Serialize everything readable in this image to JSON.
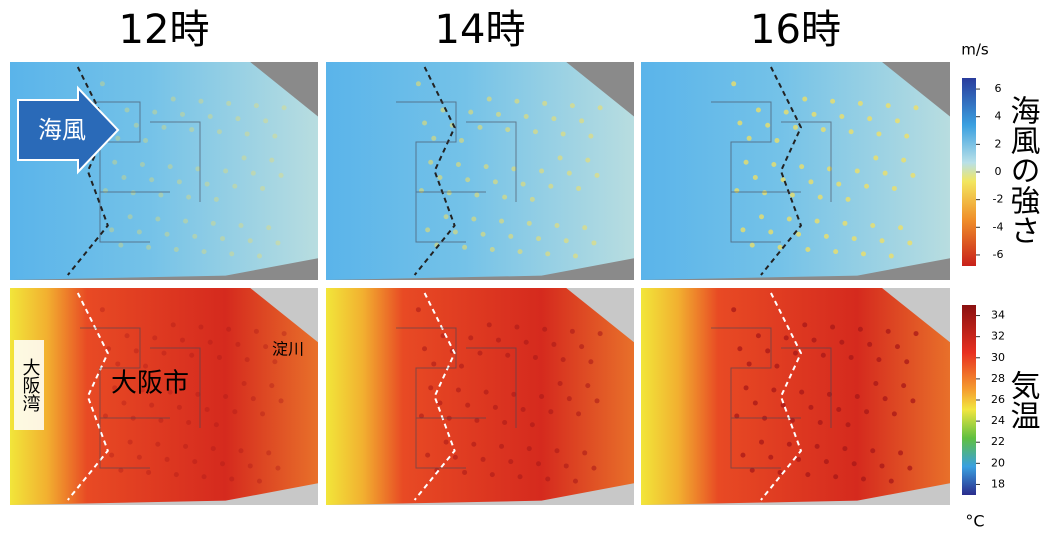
{
  "columns": [
    "12時",
    "14時",
    "16時"
  ],
  "annotations": {
    "sea_breeze": "海風",
    "osaka_bay": "大阪湾",
    "osaka_city": "大阪市",
    "yodo_river": "淀川"
  },
  "colorbars": [
    {
      "unit": "m/s",
      "label": "海風の強さ",
      "ticks": [
        6,
        4,
        2,
        0,
        -2,
        -4,
        -6
      ],
      "range": [
        -6.8,
        6.8
      ]
    },
    {
      "unit": "°C",
      "label": "気温",
      "ticks": [
        34,
        32,
        30,
        28,
        26,
        24,
        22,
        20,
        18
      ],
      "range": [
        17,
        35
      ]
    }
  ]
}
